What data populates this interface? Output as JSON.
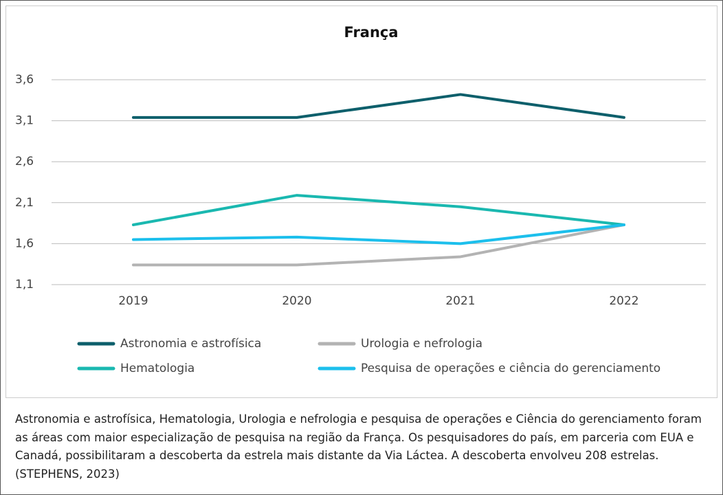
{
  "chart_data": {
    "type": "line",
    "title": "França",
    "categories": [
      "2019",
      "2020",
      "2021",
      "2022"
    ],
    "series": [
      {
        "name": "Astronomia e astrofísica",
        "color": "#0d5f6b",
        "values": [
          3.14,
          3.14,
          3.42,
          3.14
        ]
      },
      {
        "name": "Urologia e nefrologia",
        "color": "#b3b3b3",
        "values": [
          1.34,
          1.34,
          1.44,
          1.83
        ]
      },
      {
        "name": "Hematologia",
        "color": "#1ab8b0",
        "values": [
          1.83,
          2.19,
          2.05,
          1.83
        ]
      },
      {
        "name": "Pesquisa de operações e ciência do gerenciamento",
        "color": "#1cbfec",
        "values": [
          1.65,
          1.68,
          1.6,
          1.83
        ]
      }
    ],
    "ylim": [
      1.1,
      3.6
    ],
    "yticks": [
      {
        "value": 1.1,
        "label": "1,1"
      },
      {
        "value": 1.6,
        "label": "1,6"
      },
      {
        "value": 2.1,
        "label": "2,1"
      },
      {
        "value": 2.6,
        "label": "2,6"
      },
      {
        "value": 3.1,
        "label": "3,1"
      },
      {
        "value": 3.6,
        "label": "3,6"
      }
    ],
    "grid": true,
    "caption": "Astronomia e astrofísica, Hematologia, Urologia e nefrologia e pesquisa de operações e Ciência do gerenciamento foram as áreas com maior especialização de pesquisa na região da França. Os pesquisadores do país, em parceria com EUA e Canadá, possibilitaram a descoberta da estrela mais distante da Via Láctea. A descoberta envolveu 208 estrelas.  (STEPHENS, 2023)"
  }
}
